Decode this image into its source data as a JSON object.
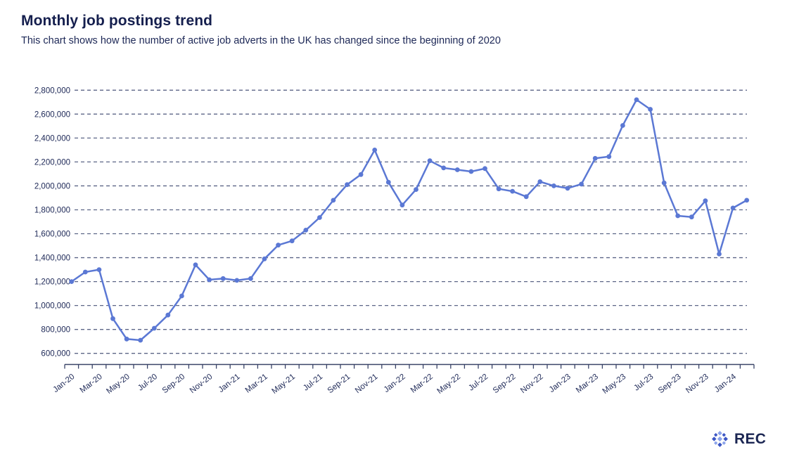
{
  "header": {
    "title": "Monthly job postings trend",
    "subtitle": "This chart shows how the number of active job adverts in the UK has changed since the beginning of 2020"
  },
  "footer": {
    "logo_text": "REC"
  },
  "colors": {
    "line": "#5b78d4",
    "marker": "#5b78d4",
    "grid": "#5d6687",
    "axis": "#3a4468",
    "tick_label": "#1c2756",
    "title_text": "#151f4e",
    "logo_dark_blue": "#3b55c4",
    "logo_light_blue": "#8ba3ea"
  },
  "chart_data": {
    "type": "line",
    "title": "Monthly job postings trend",
    "xlabel": "",
    "ylabel": "",
    "legend": "none",
    "grid": "horizontal-dashed",
    "marker": "circle",
    "ylim": [
      600000,
      2800000
    ],
    "y_ticks": [
      600000,
      800000,
      1000000,
      1200000,
      1400000,
      1600000,
      1800000,
      2000000,
      2200000,
      2400000,
      2600000,
      2800000
    ],
    "y_tick_labels": [
      "600,000",
      "800,000",
      "1,000,000",
      "1,200,000",
      "1,400,000",
      "1,600,000",
      "1,800,000",
      "2,000,000",
      "2,200,000",
      "2,400,000",
      "2,600,000",
      "2,800,000"
    ],
    "x": [
      "Jan-20",
      "Feb-20",
      "Mar-20",
      "Apr-20",
      "May-20",
      "Jun-20",
      "Jul-20",
      "Aug-20",
      "Sep-20",
      "Oct-20",
      "Nov-20",
      "Dec-20",
      "Jan-21",
      "Feb-21",
      "Mar-21",
      "Apr-21",
      "May-21",
      "Jun-21",
      "Jul-21",
      "Aug-21",
      "Sep-21",
      "Oct-21",
      "Nov-21",
      "Dec-21",
      "Jan-22",
      "Feb-22",
      "Mar-22",
      "Apr-22",
      "May-22",
      "Jun-22",
      "Jul-22",
      "Aug-22",
      "Sep-22",
      "Oct-22",
      "Nov-22",
      "Dec-22",
      "Jan-23",
      "Feb-23",
      "Mar-23",
      "Apr-23",
      "May-23",
      "Jun-23",
      "Jul-23",
      "Aug-23",
      "Sep-23",
      "Oct-23",
      "Nov-23",
      "Dec-23",
      "Jan-24",
      "Feb-24"
    ],
    "values": [
      1200000,
      1280000,
      1300000,
      890000,
      720000,
      710000,
      810000,
      920000,
      1080000,
      1340000,
      1215000,
      1225000,
      1210000,
      1225000,
      1390000,
      1505000,
      1540000,
      1630000,
      1735000,
      1880000,
      2010000,
      2095000,
      2300000,
      2030000,
      1840000,
      1970000,
      2210000,
      2150000,
      2135000,
      2120000,
      2145000,
      1975000,
      1955000,
      1910000,
      2035000,
      2000000,
      1980000,
      2015000,
      2230000,
      2245000,
      2505000,
      2720000,
      2640000,
      2025000,
      1750000,
      1740000,
      1875000,
      1430000,
      1815000,
      1880000
    ],
    "x_tick_labels": [
      "Jan-20",
      "Mar-20",
      "May-20",
      "Jul-20",
      "Sep-20",
      "Nov-20",
      "Jan-21",
      "Mar-21",
      "May-21",
      "Jul-21",
      "Sep-21",
      "Nov-21",
      "Jan-22",
      "Mar-22",
      "May-22",
      "Jul-22",
      "Sep-22",
      "Nov-22",
      "Jan-23",
      "Mar-23",
      "May-23",
      "Jul-23",
      "Sep-23",
      "Nov-23",
      "Jan-24"
    ],
    "x_label_every_n_months": 2
  }
}
